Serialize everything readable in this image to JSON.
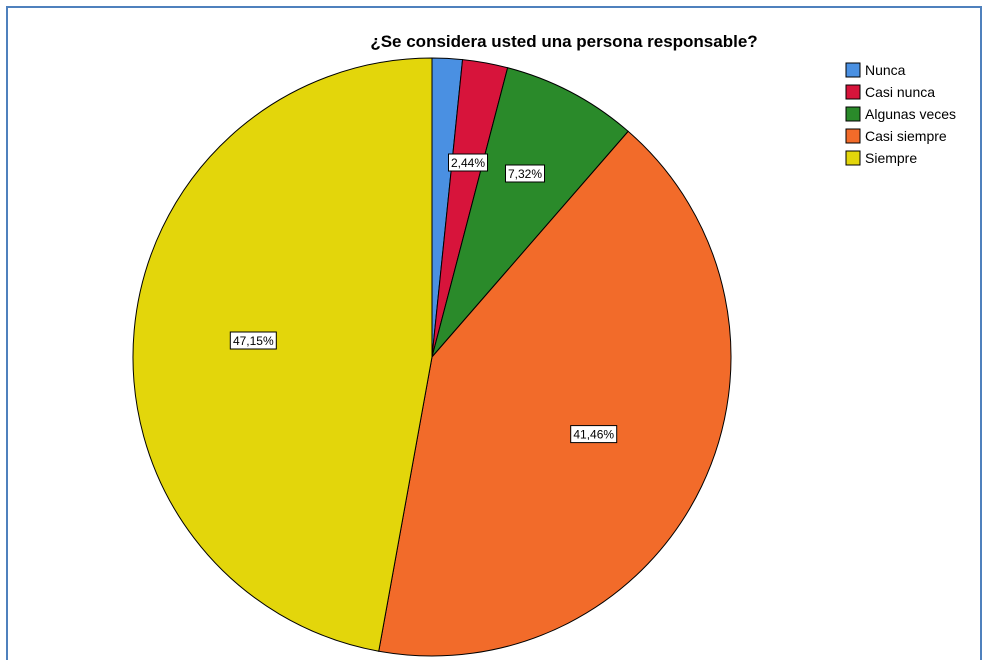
{
  "chart_data": {
    "type": "pie",
    "title": "¿Se  considera usted  una persona responsable?",
    "categories": [
      "Nunca",
      "Casi nunca",
      "Algunas veces",
      "Casi siempre",
      "Siempre"
    ],
    "values": [
      1.63,
      2.44,
      7.32,
      41.46,
      47.15
    ],
    "data_labels": [
      "",
      "2,44%",
      "7,32%",
      "41,46%",
      "47,15%"
    ],
    "colors": [
      "#4a90e2",
      "#d7143b",
      "#2a8a2a",
      "#f26b2a",
      "#e3d60b"
    ],
    "start_angle": "12 o'clock",
    "direction": "clockwise",
    "legend_position": "top-right"
  }
}
